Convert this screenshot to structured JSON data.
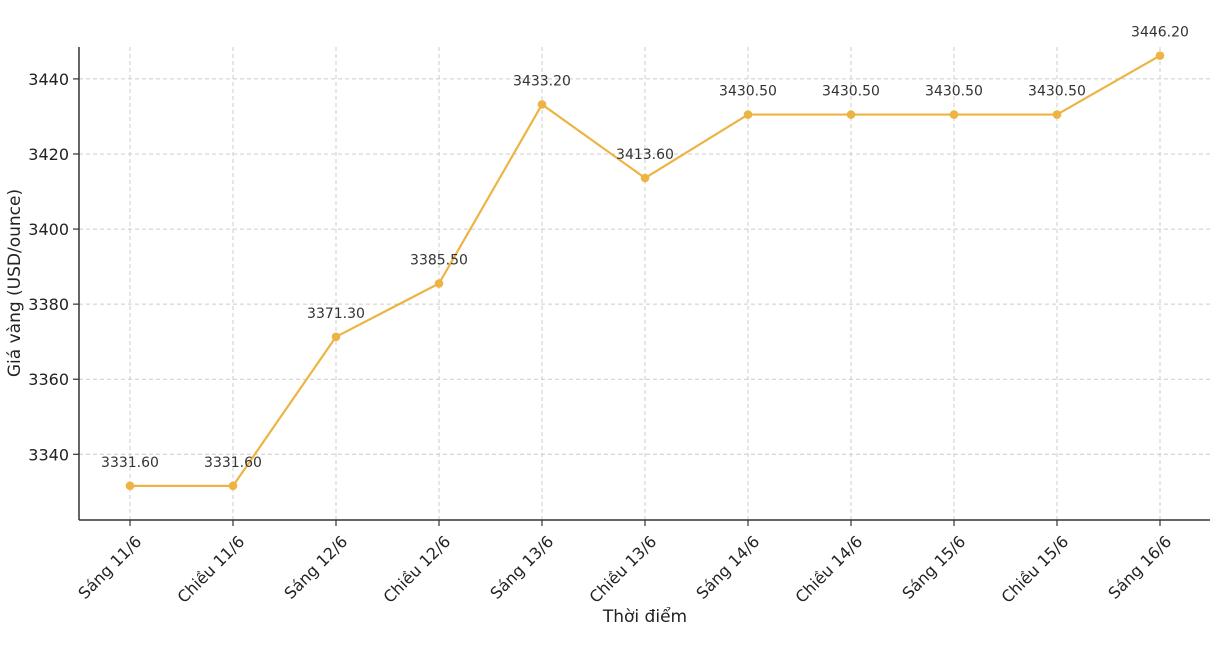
{
  "chart_data": {
    "type": "line",
    "title": "",
    "xlabel": "Thời điểm",
    "ylabel": "Giá vàng (USD/ounce)",
    "categories": [
      "Sáng 11/6",
      "Chiều 11/6",
      "Sáng 12/6",
      "Chiều 12/6",
      "Sáng 13/6",
      "Chiều 13/6",
      "Sáng 14/6",
      "Chiều 14/6",
      "Sáng 15/6",
      "Chiều 15/6",
      "Sáng 16/6"
    ],
    "series": [
      {
        "values": [
          3331.6,
          3331.6,
          3371.3,
          3385.5,
          3433.2,
          3413.6,
          3430.5,
          3430.5,
          3430.5,
          3430.5,
          3446.2
        ],
        "data_labels": [
          "3331.60",
          "3331.60",
          "3371.30",
          "3385.50",
          "3433.20",
          "3413.60",
          "3430.50",
          "3430.50",
          "3430.50",
          "3430.50",
          "3446.20"
        ]
      }
    ],
    "ylim": [
      3322.5,
      3448.5
    ],
    "yticks": [
      3340,
      3360,
      3380,
      3400,
      3420,
      3440
    ],
    "grid": true,
    "line_color": "#EDB444"
  }
}
